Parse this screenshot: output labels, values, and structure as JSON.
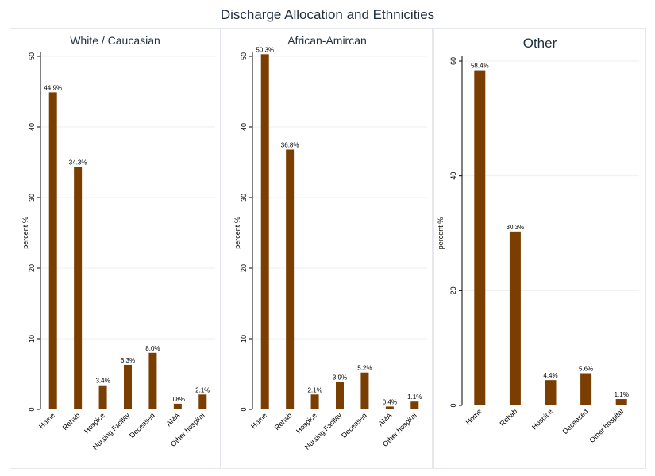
{
  "figure_title": "Discharge Allocation and Ethnicities",
  "chart_data": [
    {
      "type": "bar",
      "title": "White / Caucasian",
      "xlabel": "",
      "ylabel": "percent %",
      "ylim": [
        0,
        50
      ],
      "yticks": [
        0,
        10,
        20,
        30,
        40,
        50
      ],
      "categories": [
        "Home",
        "Rehab",
        "Hospice",
        "Nursing Facility",
        "Deceased",
        "AMA",
        "Other hospital"
      ],
      "values": [
        44.9,
        34.3,
        3.4,
        6.3,
        8.0,
        0.8,
        2.1
      ],
      "data_labels": [
        "44.9%",
        "34.3%",
        "3.4%",
        "6.3%",
        "8.0%",
        "0.8%",
        "2.1%"
      ],
      "bar_color": "#7a3e00"
    },
    {
      "type": "bar",
      "title": "African-Amircan",
      "xlabel": "",
      "ylabel": "percent %",
      "ylim": [
        0,
        50
      ],
      "yticks": [
        0,
        10,
        20,
        30,
        40,
        50
      ],
      "categories": [
        "Home",
        "Rehab",
        "Hospice",
        "Nursing Facility",
        "Deceased",
        "AMA",
        "Other hospital"
      ],
      "values": [
        50.3,
        36.8,
        2.1,
        3.9,
        5.2,
        0.4,
        1.1
      ],
      "data_labels": [
        "50.3%",
        "36.8%",
        "2.1%",
        "3.9%",
        "5.2%",
        "0.4%",
        "1.1%"
      ],
      "bar_color": "#7a3e00"
    },
    {
      "type": "bar",
      "title": "Other",
      "xlabel": "",
      "ylabel": "percent %",
      "ylim": [
        0,
        60
      ],
      "yticks": [
        0,
        20,
        40,
        60
      ],
      "categories": [
        "Home",
        "Rehab",
        "Hospice",
        "Deceased",
        "Other hospital"
      ],
      "values": [
        58.4,
        30.3,
        4.4,
        5.6,
        1.1
      ],
      "data_labels": [
        "58.4%",
        "30.3%",
        "4.4%",
        "5.6%",
        "1.1%"
      ],
      "bar_color": "#7a3e00"
    }
  ]
}
